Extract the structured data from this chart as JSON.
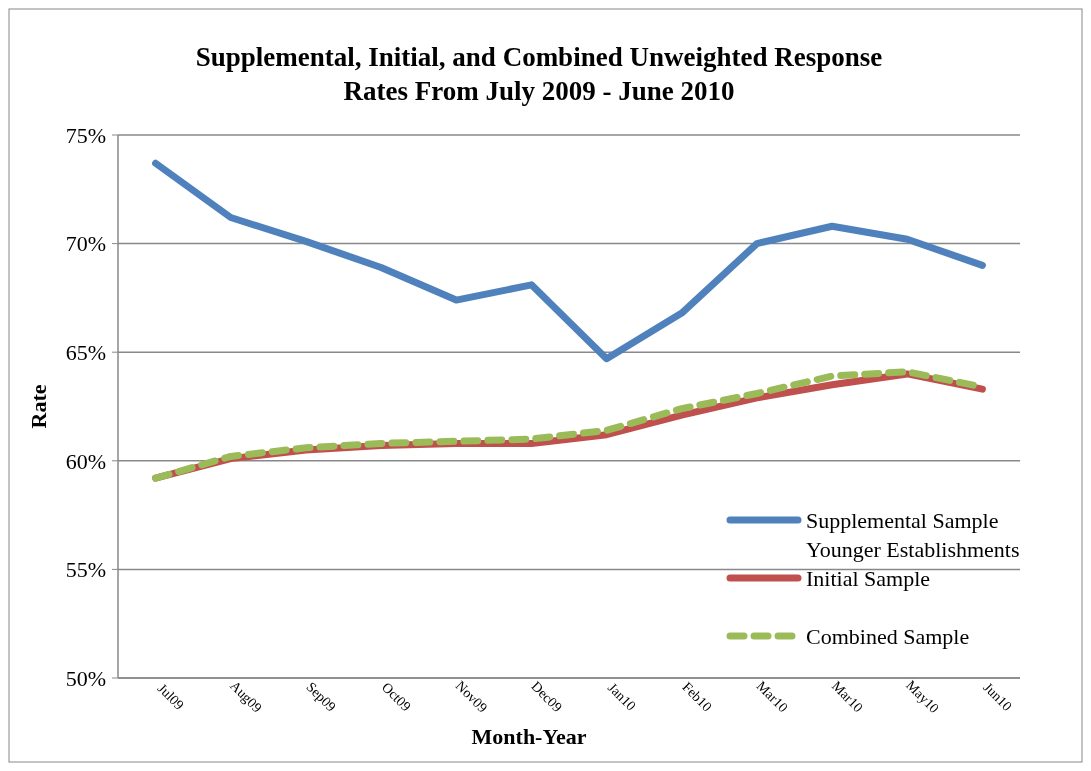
{
  "chart_data": {
    "type": "line",
    "title": "Supplemental, Initial, and Combined Unweighted Response Rates From July 2009 - June 2010",
    "xlabel": "Month-Year",
    "ylabel": "Rate",
    "categories": [
      "Jul09",
      "Aug09",
      "Sep09",
      "Oct09",
      "Nov09",
      "Dec09",
      "Jan10",
      "Feb10",
      "Mar10",
      "Mar10",
      "May10",
      "Jun10"
    ],
    "series": [
      {
        "name": "Supplemental Sample Younger Establishments",
        "color": "#4f81bd",
        "line_style": "solid",
        "values": [
          73.7,
          71.2,
          70.1,
          68.9,
          67.4,
          68.1,
          64.7,
          66.8,
          70.0,
          70.8,
          70.2,
          69.0
        ]
      },
      {
        "name": "Initial Sample",
        "color": "#c0504d",
        "line_style": "solid",
        "values": [
          59.2,
          60.1,
          60.5,
          60.7,
          60.8,
          60.8,
          61.2,
          62.1,
          62.9,
          63.5,
          64.0,
          63.3
        ]
      },
      {
        "name": "Combined Sample",
        "color": "#9bbb59",
        "line_style": "dashed",
        "values": [
          59.2,
          60.2,
          60.6,
          60.8,
          60.9,
          61.0,
          61.4,
          62.4,
          63.1,
          63.9,
          64.1,
          63.4
        ]
      }
    ],
    "ylim": [
      50,
      75
    ],
    "yticks": [
      {
        "value": 50,
        "label": "50%"
      },
      {
        "value": 55,
        "label": "55%"
      },
      {
        "value": 60,
        "label": "60%"
      },
      {
        "value": 65,
        "label": "65%"
      },
      {
        "value": 70,
        "label": "70%"
      },
      {
        "value": 75,
        "label": "75%"
      }
    ],
    "grid": "y",
    "legend": "right",
    "marker": "none"
  }
}
